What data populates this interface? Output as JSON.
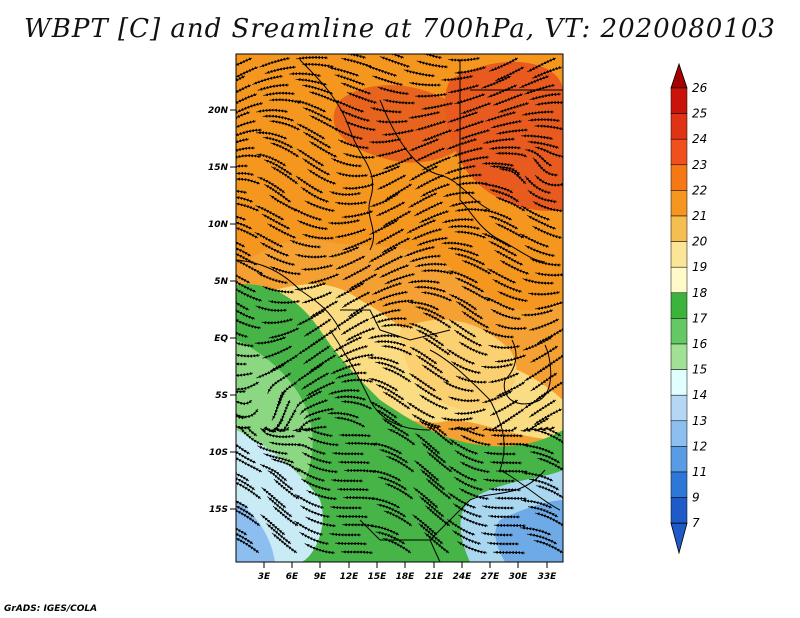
{
  "title": "WBPT [C] and Sreamline at 700hPa, VT: 2020080103",
  "credit": "GrADS: IGES/COLA",
  "map": {
    "lat_ticks": [
      "20N",
      "15N",
      "10N",
      "5N",
      "EQ",
      "5S",
      "10S",
      "15S"
    ],
    "lon_ticks": [
      "3E",
      "6E",
      "9E",
      "12E",
      "15E",
      "18E",
      "21E",
      "24E",
      "27E",
      "30E",
      "33E"
    ]
  },
  "colorbar": {
    "levels": [
      "26",
      "25",
      "24",
      "23",
      "22",
      "21",
      "20",
      "19",
      "18",
      "17",
      "16",
      "15",
      "14",
      "13",
      "12",
      "11",
      "9",
      "7"
    ],
    "colors": [
      "#a50000",
      "#c8140a",
      "#e03214",
      "#f0501e",
      "#f57814",
      "#f5961e",
      "#f5be50",
      "#fae696",
      "#fffac8",
      "#3cb43c",
      "#64c864",
      "#a0e196",
      "#e1ffff",
      "#b4d7f5",
      "#8cbef0",
      "#5a9be6",
      "#2d78d7",
      "#1e5ac8"
    ]
  },
  "colors": {
    "warm_core": "#f05a14",
    "warm": "#f59628",
    "mild": "#fadc82",
    "green": "#46b446",
    "cool": "#aad7f0"
  }
}
